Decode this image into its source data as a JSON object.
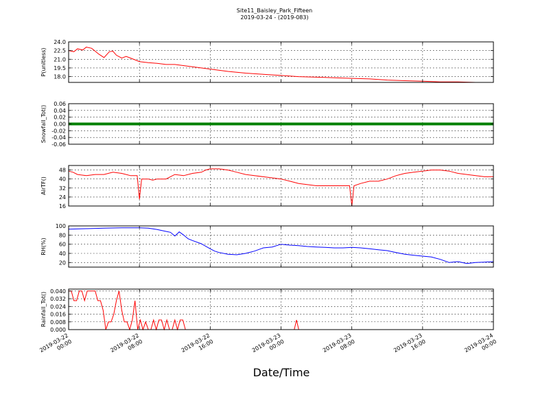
{
  "title": "Site11_Baisley_Park_Fifteen",
  "subtitle": "2019-03-24 - (2019-083)",
  "xlabel": "Date/Time",
  "x_ticks": [
    "2019-03-22\n00:00",
    "2019-03-22\n08:00",
    "2019-03-22\n16:00",
    "2019-03-23\n00:00",
    "2019-03-23\n08:00",
    "2019-03-23\n16:00",
    "2019-03-24\n00:00"
  ],
  "chart_data": [
    {
      "type": "line",
      "ylabel": "P(unitless)",
      "ylim": [
        17.0,
        24.0
      ],
      "yticks": [
        18.0,
        19.5,
        21.0,
        22.5,
        24.0
      ],
      "xlim": [
        0,
        48
      ],
      "grid": true,
      "color": "#ff0000",
      "series": [
        {
          "x": [
            0,
            0.6,
            1,
            1.6,
            2,
            2.6,
            3,
            3.4,
            4,
            4.6,
            5,
            5.4,
            6,
            6.5,
            7,
            7.5,
            8,
            9,
            10,
            11,
            12,
            14,
            16,
            18,
            20,
            22,
            24,
            26,
            28,
            30,
            32,
            34,
            36,
            38,
            40,
            42,
            44,
            46,
            48
          ],
          "values": [
            22.5,
            22.3,
            22.8,
            22.6,
            23.1,
            22.9,
            22.4,
            21.9,
            21.3,
            22.3,
            22.4,
            21.7,
            21.2,
            21.5,
            21.2,
            20.9,
            20.6,
            20.4,
            20.3,
            20.1,
            20.1,
            19.7,
            19.3,
            18.9,
            18.6,
            18.4,
            18.2,
            18.0,
            17.9,
            17.8,
            17.7,
            17.6,
            17.4,
            17.3,
            17.2,
            17.1,
            17.1,
            17.0,
            17.0
          ]
        }
      ]
    },
    {
      "type": "line",
      "ylabel": "Snowfall_Tot()",
      "ylim": [
        -0.06,
        0.06
      ],
      "yticks": [
        -0.06,
        -0.04,
        -0.02,
        0.0,
        0.02,
        0.04,
        0.06
      ],
      "xlim": [
        0,
        48
      ],
      "grid": true,
      "color": "#008000",
      "marker": "square",
      "series": [
        {
          "x": [
            0,
            48
          ],
          "values": [
            0,
            0
          ]
        }
      ]
    },
    {
      "type": "line",
      "ylabel": "AirTF()",
      "ylim": [
        16,
        52
      ],
      "yticks": [
        16,
        24,
        32,
        40,
        48
      ],
      "xlim": [
        0,
        48
      ],
      "grid": true,
      "color": "#ff0000",
      "series": [
        {
          "x": [
            0,
            0.5,
            1,
            2,
            3,
            4,
            5,
            6,
            7,
            7.75,
            8,
            8.25,
            9,
            9.5,
            10,
            11,
            12,
            13,
            14,
            15,
            15.5,
            16,
            17,
            18,
            18.5,
            19,
            20,
            21,
            22,
            23,
            24,
            25,
            26,
            27,
            28,
            29,
            30,
            31,
            31.75,
            32,
            32.25,
            33,
            34,
            35,
            36,
            37,
            38,
            39,
            40,
            41,
            42,
            43,
            44,
            45,
            46,
            47,
            48
          ],
          "values": [
            47,
            46,
            44,
            43,
            44,
            44,
            46,
            45,
            43,
            43,
            22,
            40,
            40,
            39,
            40,
            40,
            44,
            43,
            45,
            46,
            48,
            49,
            49,
            48,
            47,
            46,
            44,
            43,
            42,
            41,
            40,
            38,
            36,
            35,
            34,
            34,
            34,
            34,
            34,
            16,
            34,
            36,
            38,
            38,
            40,
            43,
            45,
            46,
            47,
            48,
            48,
            47,
            45,
            44,
            43,
            42,
            42
          ]
        }
      ]
    },
    {
      "type": "line",
      "ylabel": "RH(%)",
      "ylim": [
        10,
        100
      ],
      "yticks": [
        20,
        40,
        60,
        80,
        100
      ],
      "xlim": [
        0,
        48
      ],
      "grid": true,
      "color": "#0000ff",
      "series": [
        {
          "x": [
            0,
            2,
            4,
            6,
            8,
            9,
            10,
            11,
            11.5,
            12,
            12.5,
            13,
            13.5,
            14,
            15,
            16,
            16.5,
            17,
            18,
            19,
            20,
            21,
            22,
            23,
            24,
            25,
            26,
            27,
            28,
            29,
            30,
            31,
            32,
            33,
            34,
            35,
            36,
            37,
            38,
            39,
            40,
            41,
            42,
            43,
            44,
            45,
            46,
            47,
            48
          ],
          "values": [
            93,
            94,
            95,
            96,
            96,
            95,
            92,
            88,
            86,
            78,
            87,
            80,
            72,
            68,
            61,
            50,
            45,
            42,
            38,
            37,
            40,
            45,
            52,
            54,
            60,
            58,
            57,
            55,
            54,
            53,
            52,
            52,
            53,
            52,
            50,
            48,
            46,
            42,
            38,
            36,
            34,
            32,
            27,
            20,
            22,
            18,
            20,
            21,
            22
          ]
        }
      ]
    },
    {
      "type": "line",
      "ylabel": "Rainfall_Tot()",
      "ylim": [
        0,
        0.042
      ],
      "yticks": [
        0.0,
        0.008,
        0.016,
        0.024,
        0.032,
        0.04
      ],
      "xlim": [
        0,
        48
      ],
      "grid": true,
      "color": "#ff0000",
      "series": [
        {
          "x": [
            0,
            0.3,
            0.6,
            0.9,
            1.2,
            1.5,
            1.8,
            2.1,
            2.4,
            2.7,
            3,
            3.3,
            3.6,
            3.9,
            4.2,
            4.5,
            4.8,
            5.1,
            5.4,
            5.7,
            6,
            6.3,
            6.6,
            6.9,
            7.2,
            7.5,
            7.8,
            8.1,
            8.4,
            8.7,
            9,
            9.3,
            9.6,
            9.9,
            10.2,
            10.5,
            10.8,
            11.1,
            11.4,
            11.7,
            12,
            12.3,
            12.6,
            12.9,
            13.2,
            13.5,
            13.8,
            14.1,
            17,
            20,
            23,
            25,
            25.5,
            25.75,
            26,
            26.5,
            30,
            34,
            38,
            42,
            46,
            48
          ],
          "values": [
            0.04,
            0.04,
            0.03,
            0.03,
            0.04,
            0.04,
            0.03,
            0.04,
            0.04,
            0.04,
            0.04,
            0.03,
            0.03,
            0.02,
            0,
            0.008,
            0.008,
            0.016,
            0.03,
            0.04,
            0.02,
            0.008,
            0.008,
            0,
            0.01,
            0.03,
            0,
            0.01,
            0,
            0.008,
            0,
            0,
            0.01,
            0,
            0.01,
            0.01,
            0,
            0.01,
            0,
            0,
            0.01,
            0,
            0.01,
            0.01,
            0,
            0,
            0,
            0,
            0,
            0,
            0,
            0,
            0,
            0.01,
            0,
            0,
            0,
            0,
            0,
            0,
            0,
            0
          ]
        }
      ]
    }
  ]
}
